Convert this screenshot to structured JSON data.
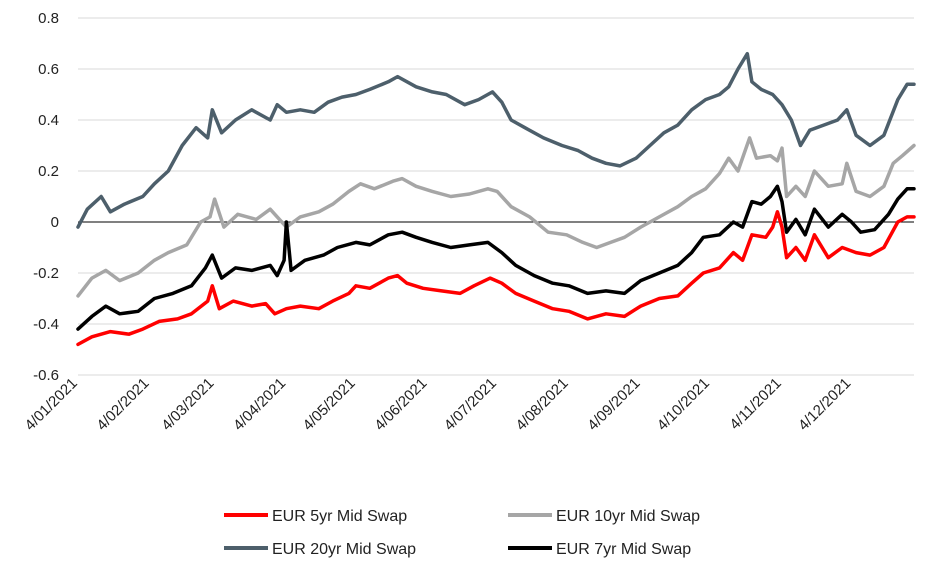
{
  "chart_data": {
    "type": "line",
    "title": "",
    "xlabel": "",
    "ylabel": "",
    "ylim": [
      -0.6,
      0.8
    ],
    "yticks": [
      -0.6,
      -0.4,
      -0.2,
      0,
      0.2,
      0.4,
      0.6,
      0.8
    ],
    "ytick_labels": [
      "-0.6",
      "-0.4",
      "-0.2",
      "0",
      "0.2",
      "0.4",
      "0.6",
      "0.8"
    ],
    "xlim": [
      "2021-01-04",
      "2021-12-31"
    ],
    "xtick_labels": [
      "4/01/2021",
      "4/02/2021",
      "4/03/2021",
      "4/04/2021",
      "4/05/2021",
      "4/06/2021",
      "4/07/2021",
      "4/08/2021",
      "4/09/2021",
      "4/10/2021",
      "4/11/2021",
      "4/12/2021"
    ],
    "xtick_dates": [
      "2021-01-04",
      "2021-02-04",
      "2021-03-04",
      "2021-04-04",
      "2021-05-04",
      "2021-06-04",
      "2021-07-04",
      "2021-08-04",
      "2021-09-04",
      "2021-10-04",
      "2021-11-04",
      "2021-12-04"
    ],
    "grid": "horizontal",
    "legend_position": "bottom",
    "series": [
      {
        "name": "EUR 5yr Mid Swap",
        "color": "#ff0000",
        "points": [
          [
            "2021-01-04",
            -0.48
          ],
          [
            "2021-01-10",
            -0.45
          ],
          [
            "2021-01-18",
            -0.43
          ],
          [
            "2021-01-26",
            -0.44
          ],
          [
            "2021-02-01",
            -0.42
          ],
          [
            "2021-02-08",
            -0.39
          ],
          [
            "2021-02-16",
            -0.38
          ],
          [
            "2021-02-22",
            -0.36
          ],
          [
            "2021-03-01",
            -0.31
          ],
          [
            "2021-03-03",
            -0.25
          ],
          [
            "2021-03-06",
            -0.34
          ],
          [
            "2021-03-12",
            -0.31
          ],
          [
            "2021-03-20",
            -0.33
          ],
          [
            "2021-03-26",
            -0.32
          ],
          [
            "2021-03-30",
            -0.36
          ],
          [
            "2021-04-04",
            -0.34
          ],
          [
            "2021-04-10",
            -0.33
          ],
          [
            "2021-04-18",
            -0.34
          ],
          [
            "2021-04-24",
            -0.31
          ],
          [
            "2021-05-01",
            -0.28
          ],
          [
            "2021-05-04",
            -0.25
          ],
          [
            "2021-05-10",
            -0.26
          ],
          [
            "2021-05-18",
            -0.22
          ],
          [
            "2021-05-22",
            -0.21
          ],
          [
            "2021-05-26",
            -0.24
          ],
          [
            "2021-06-02",
            -0.26
          ],
          [
            "2021-06-10",
            -0.27
          ],
          [
            "2021-06-18",
            -0.28
          ],
          [
            "2021-06-24",
            -0.25
          ],
          [
            "2021-07-01",
            -0.22
          ],
          [
            "2021-07-06",
            -0.24
          ],
          [
            "2021-07-12",
            -0.28
          ],
          [
            "2021-07-20",
            -0.31
          ],
          [
            "2021-07-28",
            -0.34
          ],
          [
            "2021-08-04",
            -0.35
          ],
          [
            "2021-08-12",
            -0.38
          ],
          [
            "2021-08-20",
            -0.36
          ],
          [
            "2021-08-28",
            -0.37
          ],
          [
            "2021-09-04",
            -0.33
          ],
          [
            "2021-09-12",
            -0.3
          ],
          [
            "2021-09-20",
            -0.29
          ],
          [
            "2021-09-26",
            -0.24
          ],
          [
            "2021-10-01",
            -0.2
          ],
          [
            "2021-10-08",
            -0.18
          ],
          [
            "2021-10-14",
            -0.12
          ],
          [
            "2021-10-18",
            -0.15
          ],
          [
            "2021-10-22",
            -0.05
          ],
          [
            "2021-10-28",
            -0.06
          ],
          [
            "2021-10-31",
            -0.02
          ],
          [
            "2021-11-02",
            0.04
          ],
          [
            "2021-11-04",
            -0.02
          ],
          [
            "2021-11-06",
            -0.14
          ],
          [
            "2021-11-10",
            -0.1
          ],
          [
            "2021-11-14",
            -0.15
          ],
          [
            "2021-11-18",
            -0.05
          ],
          [
            "2021-11-24",
            -0.14
          ],
          [
            "2021-11-30",
            -0.1
          ],
          [
            "2021-12-06",
            -0.12
          ],
          [
            "2021-12-12",
            -0.13
          ],
          [
            "2021-12-18",
            -0.1
          ],
          [
            "2021-12-24",
            0.0
          ],
          [
            "2021-12-28",
            0.02
          ],
          [
            "2021-12-31",
            0.02
          ]
        ]
      },
      {
        "name": "EUR 10yr Mid Swap",
        "color": "#a6a6a6",
        "points": [
          [
            "2021-01-04",
            -0.29
          ],
          [
            "2021-01-10",
            -0.22
          ],
          [
            "2021-01-16",
            -0.19
          ],
          [
            "2021-01-22",
            -0.23
          ],
          [
            "2021-01-30",
            -0.2
          ],
          [
            "2021-02-06",
            -0.15
          ],
          [
            "2021-02-12",
            -0.12
          ],
          [
            "2021-02-20",
            -0.09
          ],
          [
            "2021-02-26",
            0.0
          ],
          [
            "2021-03-02",
            0.02
          ],
          [
            "2021-03-04",
            0.09
          ],
          [
            "2021-03-08",
            -0.02
          ],
          [
            "2021-03-14",
            0.03
          ],
          [
            "2021-03-22",
            0.01
          ],
          [
            "2021-03-28",
            0.05
          ],
          [
            "2021-03-31",
            0.02
          ],
          [
            "2021-04-04",
            -0.02
          ],
          [
            "2021-04-10",
            0.02
          ],
          [
            "2021-04-18",
            0.04
          ],
          [
            "2021-04-24",
            0.07
          ],
          [
            "2021-05-01",
            0.12
          ],
          [
            "2021-05-06",
            0.15
          ],
          [
            "2021-05-12",
            0.13
          ],
          [
            "2021-05-20",
            0.16
          ],
          [
            "2021-05-24",
            0.17
          ],
          [
            "2021-05-30",
            0.14
          ],
          [
            "2021-06-06",
            0.12
          ],
          [
            "2021-06-14",
            0.1
          ],
          [
            "2021-06-22",
            0.11
          ],
          [
            "2021-06-30",
            0.13
          ],
          [
            "2021-07-04",
            0.12
          ],
          [
            "2021-07-10",
            0.06
          ],
          [
            "2021-07-18",
            0.02
          ],
          [
            "2021-07-26",
            -0.04
          ],
          [
            "2021-08-03",
            -0.05
          ],
          [
            "2021-08-10",
            -0.08
          ],
          [
            "2021-08-16",
            -0.1
          ],
          [
            "2021-08-22",
            -0.08
          ],
          [
            "2021-08-28",
            -0.06
          ],
          [
            "2021-09-04",
            -0.02
          ],
          [
            "2021-09-12",
            0.02
          ],
          [
            "2021-09-20",
            0.06
          ],
          [
            "2021-09-26",
            0.1
          ],
          [
            "2021-10-02",
            0.13
          ],
          [
            "2021-10-08",
            0.19
          ],
          [
            "2021-10-12",
            0.25
          ],
          [
            "2021-10-16",
            0.2
          ],
          [
            "2021-10-21",
            0.33
          ],
          [
            "2021-10-24",
            0.25
          ],
          [
            "2021-10-30",
            0.26
          ],
          [
            "2021-11-02",
            0.24
          ],
          [
            "2021-11-04",
            0.29
          ],
          [
            "2021-11-06",
            0.1
          ],
          [
            "2021-11-10",
            0.14
          ],
          [
            "2021-11-14",
            0.1
          ],
          [
            "2021-11-18",
            0.2
          ],
          [
            "2021-11-24",
            0.14
          ],
          [
            "2021-11-30",
            0.15
          ],
          [
            "2021-12-02",
            0.23
          ],
          [
            "2021-12-06",
            0.12
          ],
          [
            "2021-12-12",
            0.1
          ],
          [
            "2021-12-18",
            0.14
          ],
          [
            "2021-12-22",
            0.23
          ],
          [
            "2021-12-26",
            0.26
          ],
          [
            "2021-12-31",
            0.3
          ]
        ]
      },
      {
        "name": "EUR 20yr Mid Swap",
        "color": "#4d5f6b",
        "points": [
          [
            "2021-01-04",
            -0.02
          ],
          [
            "2021-01-08",
            0.05
          ],
          [
            "2021-01-14",
            0.1
          ],
          [
            "2021-01-18",
            0.04
          ],
          [
            "2021-01-24",
            0.07
          ],
          [
            "2021-02-01",
            0.1
          ],
          [
            "2021-02-06",
            0.15
          ],
          [
            "2021-02-12",
            0.2
          ],
          [
            "2021-02-18",
            0.3
          ],
          [
            "2021-02-24",
            0.37
          ],
          [
            "2021-03-01",
            0.33
          ],
          [
            "2021-03-03",
            0.44
          ],
          [
            "2021-03-07",
            0.35
          ],
          [
            "2021-03-13",
            0.4
          ],
          [
            "2021-03-20",
            0.44
          ],
          [
            "2021-03-28",
            0.4
          ],
          [
            "2021-03-31",
            0.46
          ],
          [
            "2021-04-04",
            0.43
          ],
          [
            "2021-04-10",
            0.44
          ],
          [
            "2021-04-16",
            0.43
          ],
          [
            "2021-04-22",
            0.47
          ],
          [
            "2021-04-28",
            0.49
          ],
          [
            "2021-05-04",
            0.5
          ],
          [
            "2021-05-10",
            0.52
          ],
          [
            "2021-05-18",
            0.55
          ],
          [
            "2021-05-22",
            0.57
          ],
          [
            "2021-05-30",
            0.53
          ],
          [
            "2021-06-06",
            0.51
          ],
          [
            "2021-06-12",
            0.5
          ],
          [
            "2021-06-20",
            0.46
          ],
          [
            "2021-06-26",
            0.48
          ],
          [
            "2021-07-02",
            0.51
          ],
          [
            "2021-07-06",
            0.47
          ],
          [
            "2021-07-10",
            0.4
          ],
          [
            "2021-07-16",
            0.37
          ],
          [
            "2021-07-24",
            0.33
          ],
          [
            "2021-08-01",
            0.3
          ],
          [
            "2021-08-08",
            0.28
          ],
          [
            "2021-08-14",
            0.25
          ],
          [
            "2021-08-20",
            0.23
          ],
          [
            "2021-08-26",
            0.22
          ],
          [
            "2021-09-02",
            0.25
          ],
          [
            "2021-09-08",
            0.3
          ],
          [
            "2021-09-14",
            0.35
          ],
          [
            "2021-09-20",
            0.38
          ],
          [
            "2021-09-26",
            0.44
          ],
          [
            "2021-10-02",
            0.48
          ],
          [
            "2021-10-08",
            0.5
          ],
          [
            "2021-10-12",
            0.53
          ],
          [
            "2021-10-16",
            0.6
          ],
          [
            "2021-10-20",
            0.66
          ],
          [
            "2021-10-22",
            0.55
          ],
          [
            "2021-10-26",
            0.52
          ],
          [
            "2021-10-31",
            0.5
          ],
          [
            "2021-11-04",
            0.46
          ],
          [
            "2021-11-08",
            0.4
          ],
          [
            "2021-11-12",
            0.3
          ],
          [
            "2021-11-16",
            0.36
          ],
          [
            "2021-11-22",
            0.38
          ],
          [
            "2021-11-28",
            0.4
          ],
          [
            "2021-12-02",
            0.44
          ],
          [
            "2021-12-06",
            0.34
          ],
          [
            "2021-12-12",
            0.3
          ],
          [
            "2021-12-18",
            0.34
          ],
          [
            "2021-12-24",
            0.48
          ],
          [
            "2021-12-28",
            0.54
          ],
          [
            "2021-12-31",
            0.54
          ]
        ]
      },
      {
        "name": "EUR 7yr Mid Swap",
        "color": "#000000",
        "points": [
          [
            "2021-01-04",
            -0.42
          ],
          [
            "2021-01-10",
            -0.37
          ],
          [
            "2021-01-16",
            -0.33
          ],
          [
            "2021-01-22",
            -0.36
          ],
          [
            "2021-01-30",
            -0.35
          ],
          [
            "2021-02-06",
            -0.3
          ],
          [
            "2021-02-14",
            -0.28
          ],
          [
            "2021-02-22",
            -0.25
          ],
          [
            "2021-02-28",
            -0.18
          ],
          [
            "2021-03-03",
            -0.13
          ],
          [
            "2021-03-07",
            -0.22
          ],
          [
            "2021-03-13",
            -0.18
          ],
          [
            "2021-03-20",
            -0.19
          ],
          [
            "2021-03-28",
            -0.17
          ],
          [
            "2021-03-31",
            -0.21
          ],
          [
            "2021-04-03",
            -0.15
          ],
          [
            "2021-04-04",
            0.0
          ],
          [
            "2021-04-06",
            -0.19
          ],
          [
            "2021-04-12",
            -0.15
          ],
          [
            "2021-04-20",
            -0.13
          ],
          [
            "2021-04-26",
            -0.1
          ],
          [
            "2021-05-04",
            -0.08
          ],
          [
            "2021-05-10",
            -0.09
          ],
          [
            "2021-05-18",
            -0.05
          ],
          [
            "2021-05-24",
            -0.04
          ],
          [
            "2021-05-30",
            -0.06
          ],
          [
            "2021-06-06",
            -0.08
          ],
          [
            "2021-06-14",
            -0.1
          ],
          [
            "2021-06-22",
            -0.09
          ],
          [
            "2021-06-30",
            -0.08
          ],
          [
            "2021-07-06",
            -0.12
          ],
          [
            "2021-07-12",
            -0.17
          ],
          [
            "2021-07-20",
            -0.21
          ],
          [
            "2021-07-28",
            -0.24
          ],
          [
            "2021-08-04",
            -0.25
          ],
          [
            "2021-08-12",
            -0.28
          ],
          [
            "2021-08-20",
            -0.27
          ],
          [
            "2021-08-28",
            -0.28
          ],
          [
            "2021-09-04",
            -0.23
          ],
          [
            "2021-09-12",
            -0.2
          ],
          [
            "2021-09-20",
            -0.17
          ],
          [
            "2021-09-26",
            -0.12
          ],
          [
            "2021-10-01",
            -0.06
          ],
          [
            "2021-10-08",
            -0.05
          ],
          [
            "2021-10-14",
            0.0
          ],
          [
            "2021-10-18",
            -0.02
          ],
          [
            "2021-10-22",
            0.08
          ],
          [
            "2021-10-26",
            0.07
          ],
          [
            "2021-10-30",
            0.1
          ],
          [
            "2021-11-02",
            0.14
          ],
          [
            "2021-11-04",
            0.08
          ],
          [
            "2021-11-06",
            -0.04
          ],
          [
            "2021-11-10",
            0.01
          ],
          [
            "2021-11-14",
            -0.05
          ],
          [
            "2021-11-18",
            0.05
          ],
          [
            "2021-11-24",
            -0.02
          ],
          [
            "2021-11-30",
            0.03
          ],
          [
            "2021-12-04",
            0.0
          ],
          [
            "2021-12-08",
            -0.04
          ],
          [
            "2021-12-14",
            -0.03
          ],
          [
            "2021-12-20",
            0.03
          ],
          [
            "2021-12-24",
            0.09
          ],
          [
            "2021-12-28",
            0.13
          ],
          [
            "2021-12-31",
            0.13
          ]
        ]
      }
    ]
  }
}
